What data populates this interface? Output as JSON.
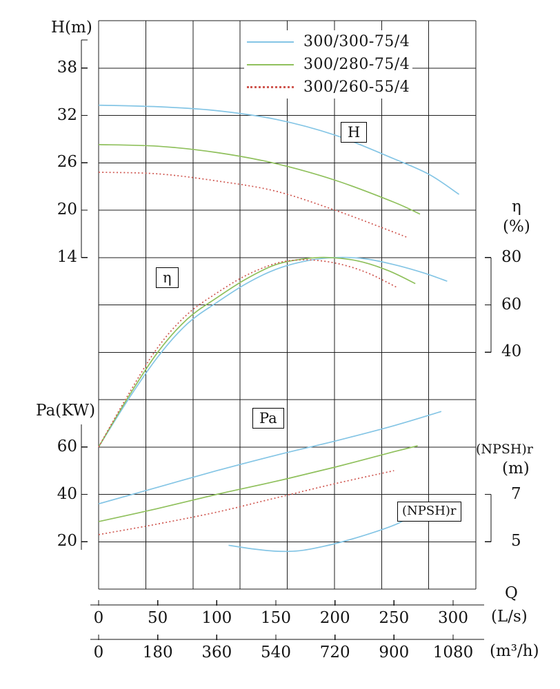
{
  "labels": {
    "h_axis": "H(m)",
    "pa_axis": "Pa(KW)",
    "eta_axis": "η",
    "eta_unit": "(%)",
    "npsh_axis": "(NPSH)r",
    "npsh_unit": "(m)",
    "q_axis": "Q",
    "q_unit_ls": "(L/s)",
    "q_unit_m3h": "(m³/h)",
    "h_box": "H",
    "eta_box": "η",
    "pa_box": "Pa",
    "npsh_box": "(NPSH)r"
  },
  "legend": {
    "items": [
      {
        "label": "300/300-75/4",
        "color": "#84c5e5",
        "dashed": false
      },
      {
        "label": "300/280-75/4",
        "color": "#8fc05c",
        "dashed": false
      },
      {
        "label": "300/260-55/4",
        "color": "#cf5750",
        "dashed": true
      }
    ]
  },
  "chart_data": {
    "type": "line",
    "grid": true,
    "legend_position": "top-center",
    "x_axis": {
      "label": "Q",
      "range_ls": [
        0,
        318
      ],
      "dual_units": [
        {
          "unit": "(L/s)",
          "ticks": [
            0,
            50,
            100,
            150,
            200,
            250,
            300
          ]
        },
        {
          "unit": "(m³/h)",
          "ticks": [
            0,
            180,
            360,
            540,
            720,
            900,
            1080
          ]
        }
      ]
    },
    "y_axes": {
      "H": {
        "label": "H(m)",
        "ticks": [
          38,
          32,
          26,
          20,
          14
        ],
        "side": "left"
      },
      "Pa": {
        "label": "Pa(KW)",
        "ticks": [
          60,
          40,
          20
        ],
        "side": "left"
      },
      "eta": {
        "label": "η(%)",
        "ticks": [
          80,
          60,
          40
        ],
        "side": "right"
      },
      "NPSH": {
        "label": "(NPSH)r(m)",
        "ticks": [
          7,
          5
        ],
        "side": "right"
      }
    },
    "families": [
      {
        "id": "H",
        "axis": "H",
        "label": "H",
        "series": [
          {
            "name": "300/300-75/4",
            "points": [
              [
                0,
                33.3
              ],
              [
                50,
                33.1
              ],
              [
                100,
                32.6
              ],
              [
                150,
                31.5
              ],
              [
                200,
                29.5
              ],
              [
                250,
                26.5
              ],
              [
                280,
                24.5
              ],
              [
                305,
                22
              ]
            ]
          },
          {
            "name": "300/280-75/4",
            "points": [
              [
                0,
                28.3
              ],
              [
                50,
                28.1
              ],
              [
                100,
                27.3
              ],
              [
                150,
                25.9
              ],
              [
                200,
                23.8
              ],
              [
                250,
                21
              ],
              [
                272,
                19.5
              ]
            ]
          },
          {
            "name": "300/260-55/4",
            "points": [
              [
                0,
                24.8
              ],
              [
                50,
                24.6
              ],
              [
                100,
                23.7
              ],
              [
                150,
                22.4
              ],
              [
                200,
                20
              ],
              [
                250,
                17.2
              ],
              [
                262,
                16.5
              ]
            ]
          }
        ]
      },
      {
        "id": "eta",
        "axis": "eta",
        "label": "η",
        "series": [
          {
            "name": "300/300-75/4",
            "points": [
              [
                0,
                0
              ],
              [
                25,
                20
              ],
              [
                50,
                38
              ],
              [
                75,
                52
              ],
              [
                100,
                61
              ],
              [
                125,
                69
              ],
              [
                150,
                75
              ],
              [
                175,
                78.5
              ],
              [
                200,
                80
              ],
              [
                225,
                79.5
              ],
              [
                250,
                77
              ],
              [
                275,
                73.5
              ],
              [
                295,
                70
              ]
            ]
          },
          {
            "name": "300/280-75/4",
            "points": [
              [
                0,
                0
              ],
              [
                25,
                21
              ],
              [
                50,
                40
              ],
              [
                75,
                54
              ],
              [
                100,
                63
              ],
              [
                125,
                71
              ],
              [
                150,
                77
              ],
              [
                175,
                79.5
              ],
              [
                195,
                80
              ],
              [
                220,
                78.5
              ],
              [
                245,
                74.5
              ],
              [
                268,
                69
              ]
            ]
          },
          {
            "name": "300/260-55/4",
            "points": [
              [
                0,
                0
              ],
              [
                25,
                22
              ],
              [
                50,
                42
              ],
              [
                75,
                56
              ],
              [
                100,
                65
              ],
              [
                125,
                72.5
              ],
              [
                150,
                77.5
              ],
              [
                170,
                79
              ],
              [
                190,
                78.5
              ],
              [
                210,
                76.5
              ],
              [
                230,
                73
              ],
              [
                252,
                67.5
              ]
            ]
          }
        ]
      },
      {
        "id": "Pa",
        "axis": "Pa",
        "label": "Pa",
        "series": [
          {
            "name": "300/300-75/4",
            "points": [
              [
                0,
                36
              ],
              [
                50,
                43
              ],
              [
                100,
                50
              ],
              [
                150,
                56.5
              ],
              [
                200,
                62.5
              ],
              [
                250,
                69
              ],
              [
                290,
                75
              ]
            ]
          },
          {
            "name": "300/280-75/4",
            "points": [
              [
                0,
                28.5
              ],
              [
                50,
                34
              ],
              [
                100,
                40
              ],
              [
                150,
                45.5
              ],
              [
                200,
                51.5
              ],
              [
                250,
                58
              ],
              [
                270,
                60.5
              ]
            ]
          },
          {
            "name": "300/260-55/4",
            "points": [
              [
                0,
                23
              ],
              [
                50,
                27.5
              ],
              [
                100,
                32.5
              ],
              [
                150,
                38.5
              ],
              [
                200,
                44.5
              ],
              [
                250,
                50
              ]
            ]
          }
        ]
      },
      {
        "id": "NPSH",
        "axis": "NPSH",
        "label": "(NPSH)r",
        "series": [
          {
            "name": "300/300-75/4",
            "points": [
              [
                110,
                4.85
              ],
              [
                130,
                4.7
              ],
              [
                150,
                4.6
              ],
              [
                170,
                4.62
              ],
              [
                190,
                4.8
              ],
              [
                210,
                5.05
              ],
              [
                230,
                5.35
              ],
              [
                250,
                5.7
              ],
              [
                262,
                6.0
              ]
            ]
          }
        ]
      }
    ]
  }
}
